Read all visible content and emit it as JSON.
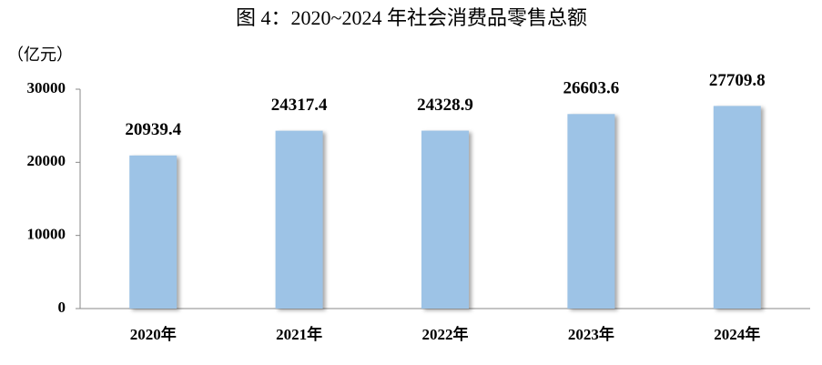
{
  "chart_data": {
    "type": "bar",
    "title": "图 4：2020~2024 年社会消费品零售总额",
    "y_label": "（亿元）",
    "categories": [
      "2020年",
      "2021年",
      "2022年",
      "2023年",
      "2024年"
    ],
    "values": [
      20939.4,
      24317.4,
      24328.9,
      26603.6,
      27709.8
    ],
    "color": "#9dc3e6",
    "ylim": [
      0,
      30000
    ],
    "yticks": [
      0,
      10000,
      20000,
      30000
    ],
    "grid": false
  }
}
